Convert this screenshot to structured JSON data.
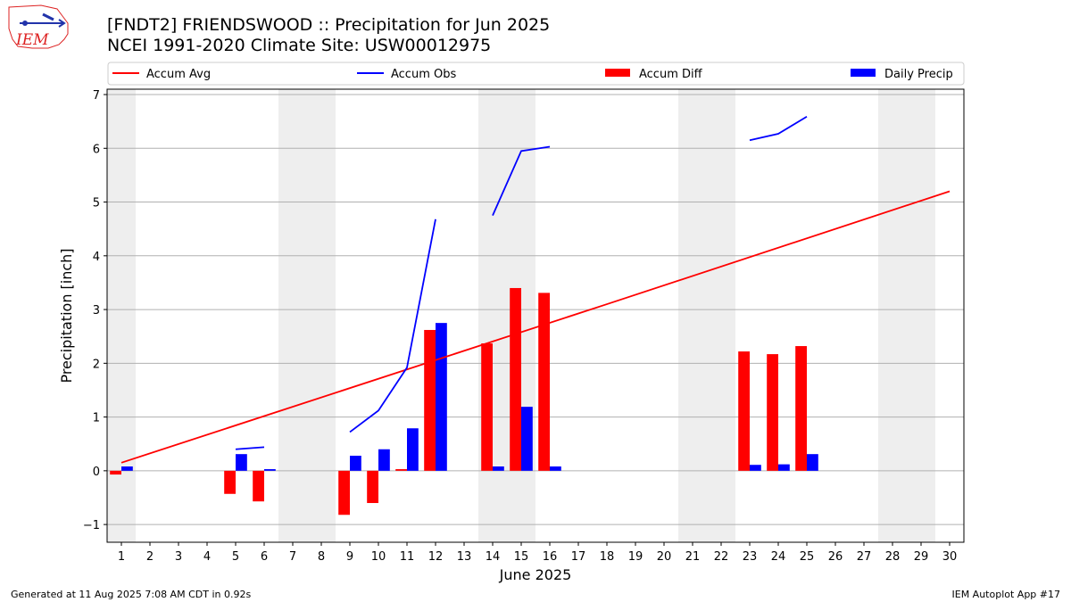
{
  "header": {
    "title": "[FNDT2] FRIENDSWOOD :: Precipitation for Jun 2025",
    "subtitle": "NCEI 1991-2020 Climate Site: USW00012975"
  },
  "logo": {
    "text": "IEM"
  },
  "footer": {
    "generated": "Generated at 11 Aug 2025 7:08 AM CDT in 0.92s",
    "app": "IEM Autoplot App #17"
  },
  "colors": {
    "avg": "#ff0000",
    "obs": "#0000ff",
    "diff": "#ff0000",
    "daily": "#0000ff",
    "weekend": "#eeeeee",
    "grid": "#b0b0b0"
  },
  "chart_data": {
    "type": "bar",
    "xlabel": "June 2025",
    "ylabel": "Precipitation [inch]",
    "xlim": [
      0.5,
      30.5
    ],
    "ylim": [
      -1.33,
      7.1
    ],
    "yticks": [
      -1,
      0,
      1,
      2,
      3,
      4,
      5,
      6,
      7
    ],
    "x": [
      1,
      2,
      3,
      4,
      5,
      6,
      7,
      8,
      9,
      10,
      11,
      12,
      13,
      14,
      15,
      16,
      17,
      18,
      19,
      20,
      21,
      22,
      23,
      24,
      25,
      26,
      27,
      28,
      29,
      30
    ],
    "grid": "horizontal",
    "legend_position": "top",
    "weekend_shading": [
      [
        0.5,
        1.5
      ],
      [
        6.5,
        8.5
      ],
      [
        13.5,
        15.5
      ],
      [
        20.5,
        22.5
      ],
      [
        27.5,
        29.5
      ]
    ],
    "series": [
      {
        "name": "Accum Avg",
        "type": "line",
        "points": [
          [
            1,
            0.15
          ],
          [
            18,
            3.1
          ],
          [
            30,
            5.2
          ]
        ]
      },
      {
        "name": "Accum Obs",
        "type": "line",
        "segments": [
          [
            [
              5,
              0.4
            ],
            [
              6,
              0.44
            ]
          ],
          [
            [
              9,
              0.72
            ],
            [
              10,
              1.12
            ],
            [
              11,
              1.92
            ],
            [
              12,
              4.68
            ]
          ],
          [
            [
              14,
              4.75
            ],
            [
              15,
              5.95
            ],
            [
              16,
              6.03
            ]
          ],
          [
            [
              23,
              6.15
            ],
            [
              24,
              6.27
            ],
            [
              25,
              6.59
            ]
          ]
        ]
      },
      {
        "name": "Accum Diff",
        "type": "bar",
        "values": [
          [
            1,
            -0.07
          ],
          [
            5,
            -0.43
          ],
          [
            6,
            -0.57
          ],
          [
            9,
            -0.82
          ],
          [
            10,
            -0.6
          ],
          [
            11,
            0.03
          ],
          [
            12,
            2.62
          ],
          [
            14,
            2.37
          ],
          [
            15,
            3.4
          ],
          [
            16,
            3.31
          ],
          [
            23,
            2.22
          ],
          [
            24,
            2.17
          ],
          [
            25,
            2.32
          ]
        ]
      },
      {
        "name": "Daily Precip",
        "type": "bar",
        "values": [
          [
            1,
            0.08
          ],
          [
            5,
            0.31
          ],
          [
            6,
            0.03
          ],
          [
            9,
            0.28
          ],
          [
            10,
            0.4
          ],
          [
            11,
            0.79
          ],
          [
            12,
            2.75
          ],
          [
            14,
            0.08
          ],
          [
            15,
            1.19
          ],
          [
            16,
            0.08
          ],
          [
            23,
            0.11
          ],
          [
            24,
            0.12
          ],
          [
            25,
            0.31
          ]
        ]
      }
    ]
  }
}
